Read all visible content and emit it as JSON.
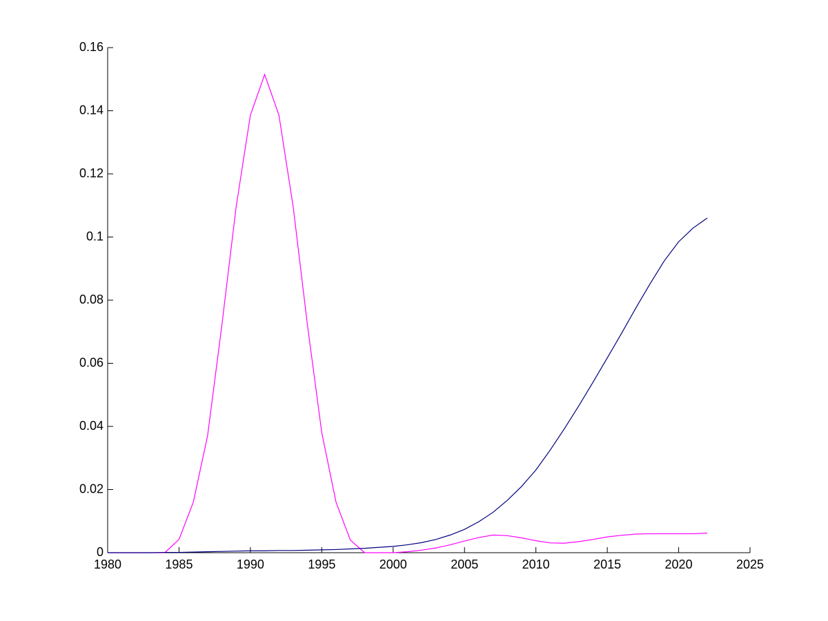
{
  "chart_data": {
    "type": "line",
    "x": [
      1980,
      1981,
      1982,
      1983,
      1984,
      1985,
      1986,
      1987,
      1988,
      1989,
      1990,
      1991,
      1992,
      1993,
      1994,
      1995,
      1996,
      1997,
      1998,
      1999,
      2000,
      2001,
      2002,
      2003,
      2004,
      2005,
      2006,
      2007,
      2008,
      2009,
      2010,
      2011,
      2012,
      2013,
      2014,
      2015,
      2016,
      2017,
      2018,
      2019,
      2020,
      2021,
      2022
    ],
    "series": [
      {
        "color": "#ff00ff",
        "values": [
          0,
          0,
          0,
          0,
          0,
          0.0042,
          0.016,
          0.037,
          0.072,
          0.1095,
          0.1386,
          0.1515,
          0.1386,
          0.1095,
          0.072,
          0.038,
          0.016,
          0.004,
          0,
          0,
          0,
          0.0003,
          0.0008,
          0.0015,
          0.0025,
          0.0037,
          0.0048,
          0.0056,
          0.0054,
          0.0047,
          0.0038,
          0.0031,
          0.003,
          0.0035,
          0.0042,
          0.005,
          0.0055,
          0.0059,
          0.006,
          0.006,
          0.006,
          0.006,
          0.0062
        ]
      },
      {
        "color": "#00007f",
        "values": [
          0,
          0,
          0,
          0,
          0.0001,
          0.0001,
          0.0002,
          0.0003,
          0.0004,
          0.0005,
          0.0006,
          0.0006,
          0.0007,
          0.0007,
          0.0008,
          0.0009,
          0.001,
          0.0012,
          0.0014,
          0.0017,
          0.002,
          0.0025,
          0.0032,
          0.0042,
          0.0056,
          0.0074,
          0.0098,
          0.0128,
          0.0166,
          0.021,
          0.0262,
          0.0325,
          0.0393,
          0.0465,
          0.054,
          0.0617,
          0.0695,
          0.0775,
          0.0852,
          0.0925,
          0.0985,
          0.1028,
          0.106
        ]
      }
    ],
    "xlim": [
      1980,
      2025
    ],
    "xticks": [
      1980,
      1985,
      1990,
      1995,
      2000,
      2005,
      2010,
      2015,
      2020,
      2025
    ],
    "ylim": [
      0,
      0.16
    ],
    "yticks": [
      0,
      0.02,
      0.04,
      0.06,
      0.08,
      0.1,
      0.12,
      0.14,
      0.16
    ],
    "grid": false
  }
}
